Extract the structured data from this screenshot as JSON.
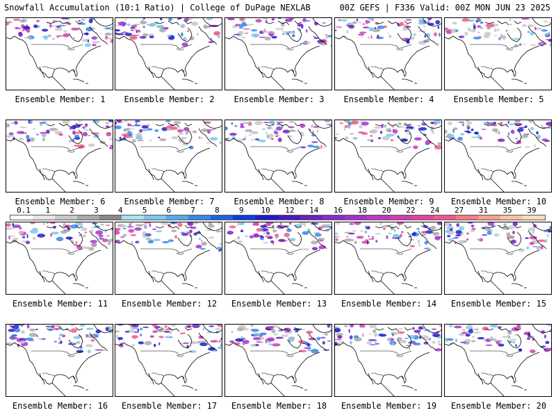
{
  "header": {
    "left": "Snowfall Accumulation (10:1 Ratio) | College of DuPage NEXLAB",
    "right": "00Z GEFS | F336 Valid: 00Z MON JUN 23 2025"
  },
  "member_prefix": "Ensemble Member: ",
  "members": [
    1,
    2,
    3,
    4,
    5,
    6,
    7,
    8,
    9,
    10,
    11,
    12,
    13,
    14,
    15,
    16,
    17,
    18,
    19,
    20
  ],
  "colorbar": {
    "labels": [
      "0.1",
      "1",
      "2",
      "3",
      "4",
      "5",
      "6",
      "7",
      "8",
      "9",
      "10",
      "12",
      "14",
      "16",
      "18",
      "20",
      "22",
      "24",
      "27",
      "31",
      "35",
      "39"
    ],
    "colors": [
      "#ffffff",
      "#e6e6e6",
      "#c8c8c8",
      "#a9a9a9",
      "#888888",
      "#a8e4f0",
      "#7cc6ec",
      "#5aa8e8",
      "#3a86e4",
      "#1e62e0",
      "#0a3ee0",
      "#1e1ec8",
      "#4a18c0",
      "#6e20c4",
      "#8c2ad0",
      "#a432c8",
      "#bc38c0",
      "#d03cb4",
      "#e044a0",
      "#ec5a8c",
      "#f27c88",
      "#f6a08c",
      "#f9c2a4",
      "#fcdcc0"
    ]
  }
}
